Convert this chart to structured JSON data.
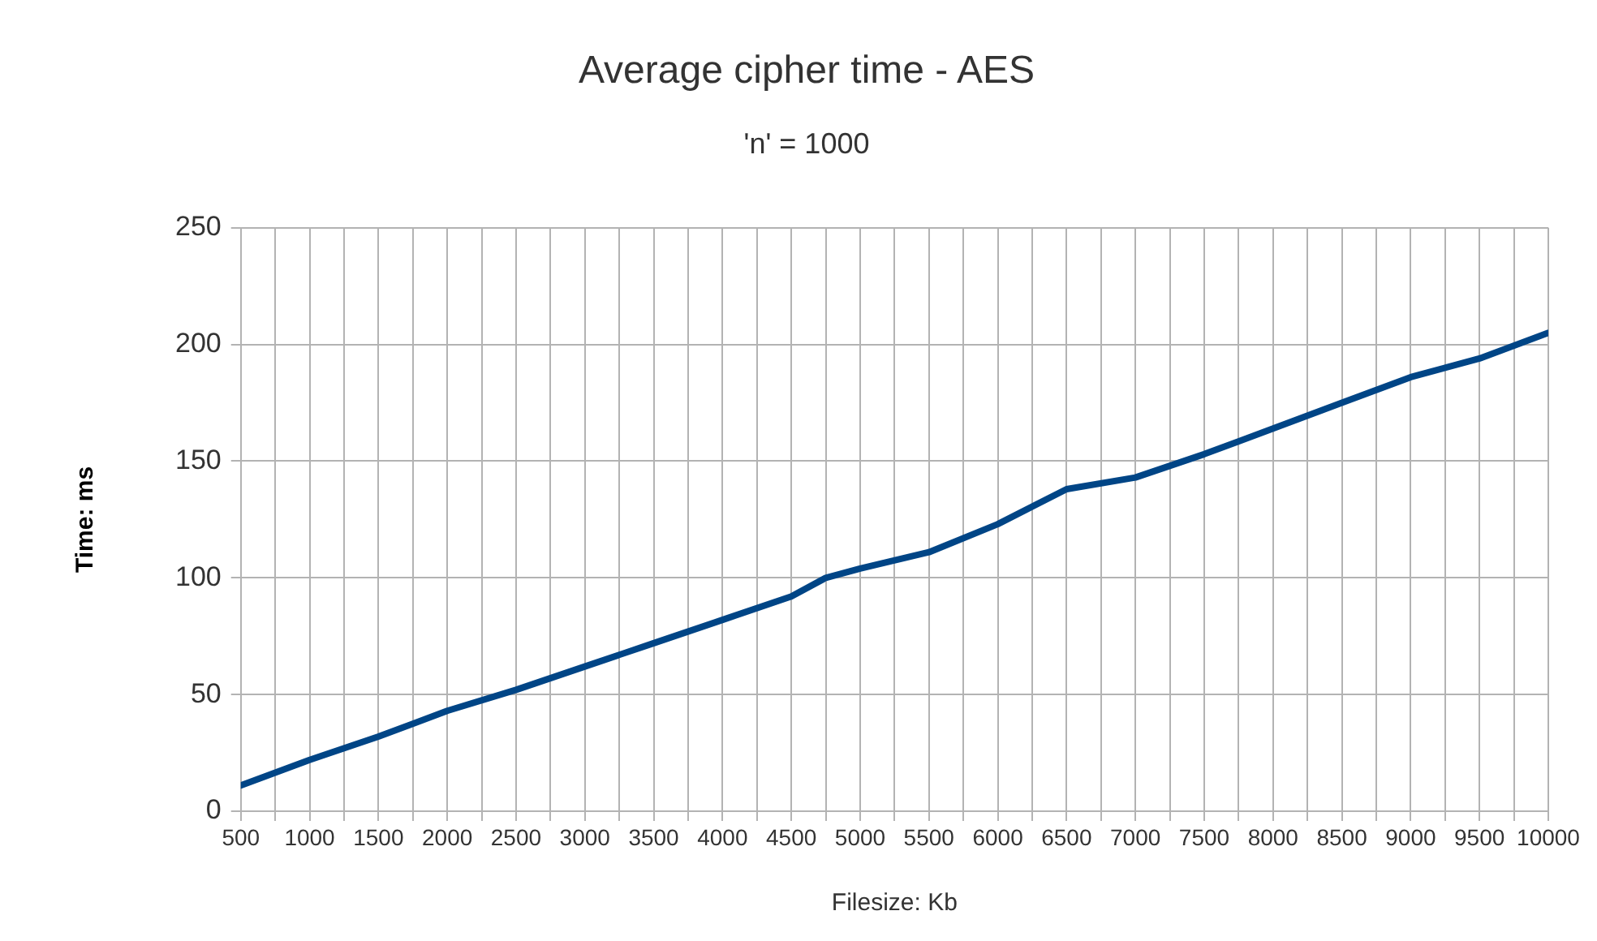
{
  "chart_data": {
    "type": "line",
    "title": "Average cipher time - AES",
    "subtitle": "'n' = 1000",
    "xlabel": "Filesize: Kb",
    "ylabel": "Time: ms",
    "x": [
      500,
      1000,
      1500,
      2000,
      2500,
      3000,
      3500,
      4000,
      4500,
      4750,
      5000,
      5500,
      6000,
      6500,
      7000,
      7500,
      8000,
      8500,
      9000,
      9500,
      10000
    ],
    "series": [
      {
        "color": "#004586",
        "values": [
          11,
          22,
          32,
          43,
          52,
          62,
          72,
          82,
          92,
          100,
          104,
          111,
          123,
          138,
          143,
          153,
          164,
          175,
          186,
          194,
          205
        ]
      }
    ],
    "xlim": [
      500,
      10000
    ],
    "xticks": [
      500,
      {
        "value": 750,
        "label": null
      },
      1000,
      {
        "value": 1250,
        "label": null
      },
      1500,
      {
        "value": 1750,
        "label": null
      },
      2000,
      {
        "value": 2250,
        "label": null
      },
      2500,
      {
        "value": 2750,
        "label": null
      },
      3000,
      {
        "value": 3250,
        "label": null
      },
      3500,
      {
        "value": 3750,
        "label": null
      },
      4000,
      {
        "value": 4250,
        "label": null
      },
      4500,
      {
        "value": 4750,
        "label": null
      },
      5000,
      {
        "value": 5250,
        "label": null
      },
      5500,
      {
        "value": 5750,
        "label": null
      },
      6000,
      {
        "value": 6250,
        "label": null
      },
      6500,
      {
        "value": 6750,
        "label": null
      },
      7000,
      {
        "value": 7250,
        "label": null
      },
      7500,
      {
        "value": 7750,
        "label": null
      },
      8000,
      {
        "value": 8250,
        "label": null
      },
      8500,
      {
        "value": 8750,
        "label": null
      },
      9000,
      {
        "value": 9250,
        "label": null
      },
      9500,
      {
        "value": 9750,
        "label": null
      },
      10000
    ],
    "ylim": [
      0,
      250
    ],
    "yticks": [
      0,
      50,
      100,
      150,
      200,
      250
    ],
    "grid": true,
    "legend": false,
    "marker": "none",
    "line_style": "solid"
  }
}
